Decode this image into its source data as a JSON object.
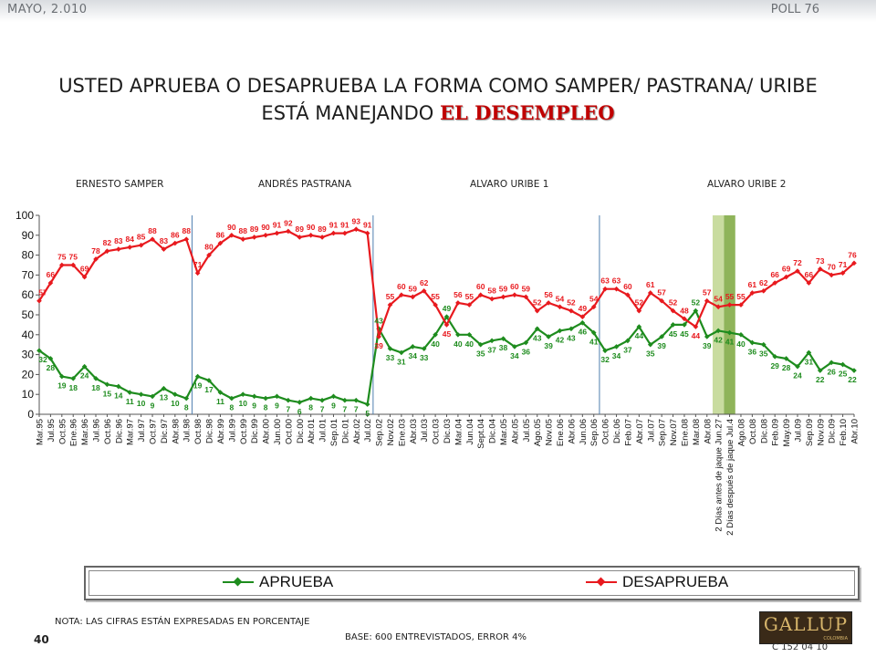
{
  "header": {
    "date_label": "MAYO, 2.010",
    "poll_label": "POLL 76"
  },
  "title": {
    "line1": "USTED APRUEBA O DESAPRUEBA LA FORMA COMO SAMPER/ PASTRANA/ URIBE",
    "line2_prefix": "ESTÁ MANEJANDO ",
    "line2_emphasis": "EL DESEMPLEO"
  },
  "periods": [
    "ERNESTO SAMPER",
    "ANDRÉS  PASTRANA",
    "ALVARO URIBE 1",
    "ALVARO URIBE 2"
  ],
  "chart_data": {
    "type": "line",
    "x": [
      "Mar.95",
      "Jul.95",
      "Oct.95",
      "Ene.96",
      "Mar.96",
      "Jul.96",
      "Oct.96",
      "Dic.96",
      "Mar.97",
      "Jul.97",
      "Oct.97",
      "Dic.97",
      "Abr.98",
      "Jul.98",
      "Oct.98",
      "Dic.98",
      "Abr.99",
      "Jul.99",
      "Oct.99",
      "Dic.99",
      "Abr.00",
      "Jun.00",
      "Oct.00",
      "Dic.00",
      "Abr.01",
      "Jul.01",
      "Sep.01",
      "Dic.01",
      "Abr.02",
      "Jul.02",
      "Sep.02",
      "Nov.02",
      "Ene.03",
      "Abr.03",
      "Jul.03",
      "Oct.03",
      "Dic.03",
      "Mar.04",
      "Jun.04",
      "Sept.04",
      "Dic.04",
      "Mar.05",
      "Abr.05",
      "Jul.05",
      "Ago.05",
      "Nov.05",
      "Ene.06",
      "Abr.06",
      "Jun.06",
      "Sep.06",
      "Oct.06",
      "Dic.06",
      "Feb.07",
      "Abr.07",
      "Jul.07",
      "Sep.07",
      "Nov.07",
      "Ene.08",
      "Mar.08",
      "Abr.08",
      "2 Días antes de jaque Jun.27",
      "2 Días después de jaque Jul.4",
      "Ago.08",
      "Oct.08",
      "Dic.08",
      "Feb.09",
      "May.09",
      "Jul.09",
      "Sep.09",
      "Nov.09",
      "Dic.09",
      "Feb.10",
      "Abr.10"
    ],
    "series": [
      {
        "name": "APRUEBA",
        "color": "#1e8c1e",
        "values": [
          32,
          28,
          19,
          18,
          24,
          18,
          15,
          14,
          11,
          10,
          9,
          13,
          10,
          8,
          19,
          17,
          11,
          8,
          10,
          9,
          8,
          9,
          7,
          6,
          8,
          7,
          9,
          7,
          7,
          5,
          43,
          33,
          31,
          34,
          33,
          40,
          49,
          40,
          40,
          35,
          37,
          38,
          34,
          36,
          43,
          39,
          42,
          43,
          46,
          41,
          32,
          34,
          37,
          44,
          35,
          39,
          45,
          45,
          52,
          39,
          42,
          41,
          40,
          36,
          35,
          29,
          28,
          24,
          31,
          22,
          26,
          25,
          22
        ]
      },
      {
        "name": "DESAPRUEBA",
        "color": "#e8191e",
        "values": [
          57,
          66,
          75,
          75,
          69,
          78,
          82,
          83,
          84,
          85,
          88,
          83,
          86,
          88,
          71,
          80,
          86,
          90,
          88,
          89,
          90,
          91,
          92,
          89,
          90,
          89,
          91,
          91,
          93,
          91,
          39,
          55,
          60,
          59,
          62,
          55,
          45,
          56,
          55,
          60,
          58,
          59,
          60,
          59,
          52,
          56,
          54,
          52,
          49,
          54,
          63,
          63,
          60,
          52,
          61,
          57,
          52,
          48,
          44,
          57,
          54,
          55,
          55,
          61,
          62,
          66,
          69,
          72,
          66,
          73,
          70,
          71,
          76
        ]
      }
    ],
    "ylim": [
      0,
      100
    ],
    "yticks": [
      0,
      10,
      20,
      30,
      40,
      50,
      60,
      70,
      80,
      90,
      100
    ],
    "period_dividers": [
      13.5,
      29.5,
      49.5
    ],
    "highlight_bands": [
      {
        "color": "#c9dca0",
        "index": 60
      },
      {
        "color": "#8fb45a",
        "index": 61
      }
    ],
    "legend_position": "bottom"
  },
  "legend": [
    "APRUEBA",
    "DESAPRUEBA"
  ],
  "footer": {
    "note": "NOTA: LAS CIFRAS ESTÁN EXPRESADAS EN PORCENTAJE",
    "base": "BASE: 600 ENTREVISTADOS, ERROR 4%",
    "page": "40",
    "code": "C 152 04 10",
    "logo_text": "GALLUP",
    "logo_sub": "COLOMBIA"
  }
}
